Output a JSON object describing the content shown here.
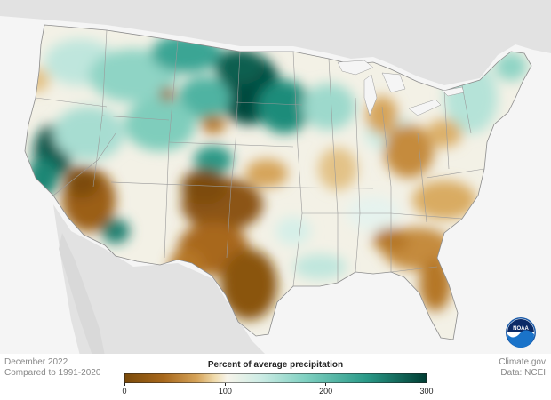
{
  "map": {
    "legend": {
      "title": "Percent of average precipitation",
      "ticks": [
        {
          "value": 0,
          "label": "0"
        },
        {
          "value": 100,
          "label": "100"
        },
        {
          "value": 200,
          "label": "200"
        },
        {
          "value": 300,
          "label": "300"
        }
      ],
      "range": [
        0,
        300
      ],
      "colors": [
        "#7a4a0a",
        "#a8681c",
        "#d6a45a",
        "#f0dcae",
        "#f7f4ea",
        "#cdece5",
        "#7fd0c1",
        "#2a9a88",
        "#003d33"
      ]
    },
    "period": "December 2022",
    "baseline": "Compared to 1991-2020",
    "credit_source": "Climate.gov",
    "credit_data": "Data: NCEI",
    "logo": {
      "icon": "noaa-logo-icon",
      "text": "NOAA"
    },
    "colors": {
      "background": "#f5f5f5",
      "land_neighbor": "#e2e2e2",
      "border": "#8c8c8c"
    }
  }
}
